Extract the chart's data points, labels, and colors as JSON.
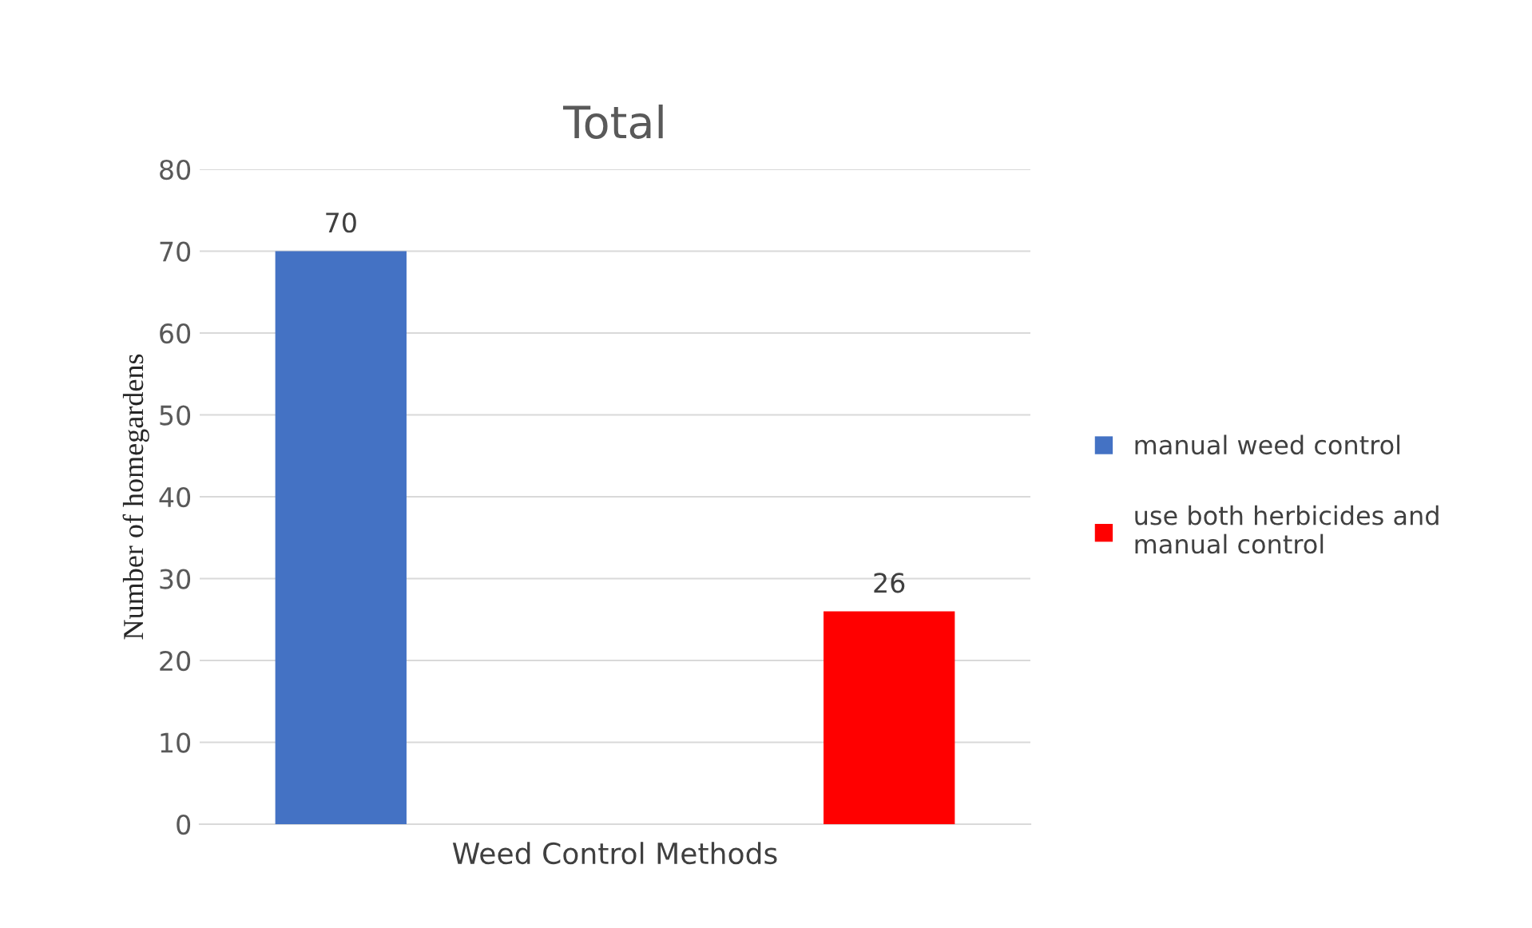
{
  "chart_data": {
    "type": "bar",
    "title": "Total",
    "ylabel": "Number of homegardens",
    "categories": [
      "Weed Control Methods"
    ],
    "series": [
      {
        "name": "manual weed control",
        "color": "#4472c4",
        "values": [
          70
        ]
      },
      {
        "name": "use both herbicides and\nmanual control",
        "color": "#ff0000",
        "values": [
          26
        ]
      }
    ],
    "ylim": [
      0,
      80
    ],
    "yticks": [
      0,
      10,
      20,
      30,
      40,
      50,
      60,
      70,
      80
    ],
    "grid": "y",
    "legend": "right",
    "data_labels": true
  }
}
